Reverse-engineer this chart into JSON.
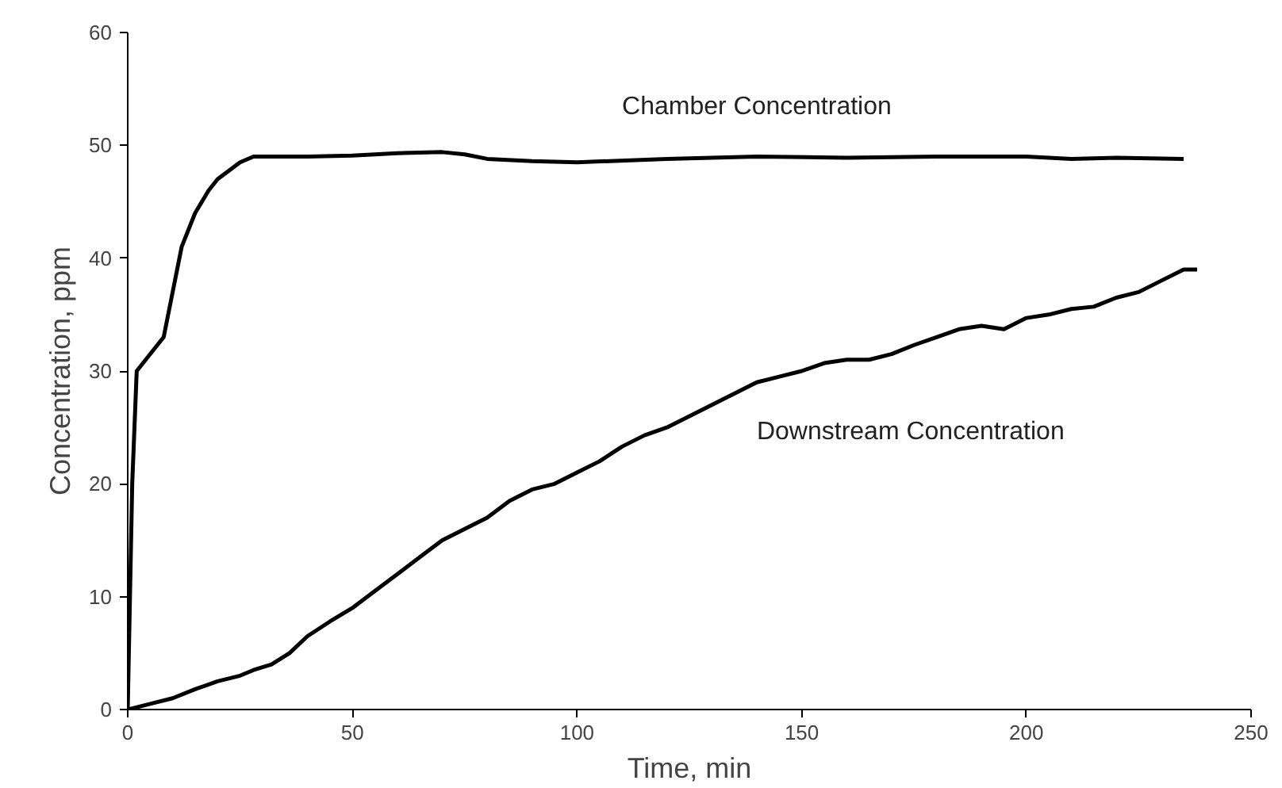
{
  "chart_data": {
    "type": "line",
    "xlabel": "Time, min",
    "ylabel": "Concentration, ppm",
    "xlim": [
      0,
      250
    ],
    "xticks": [
      0,
      50,
      100,
      150,
      200,
      250
    ],
    "ylim": [
      0,
      60
    ],
    "yticks": [
      0,
      10,
      20,
      30,
      40,
      50,
      60
    ],
    "grid": false,
    "marker": "none",
    "line_style": "solid",
    "series": [
      {
        "color": "#000000",
        "x": [
          0,
          1,
          2,
          4,
          6,
          8,
          10,
          12,
          15,
          18,
          20,
          25,
          28,
          30,
          40,
          50,
          60,
          70,
          75,
          80,
          90,
          100,
          120,
          140,
          160,
          180,
          200,
          210,
          220,
          235
        ],
        "values": [
          0,
          20,
          30,
          31,
          32,
          33,
          37,
          41,
          44,
          46,
          47,
          48.5,
          49,
          49,
          49,
          49.1,
          49.3,
          49.4,
          49.2,
          48.8,
          48.6,
          48.5,
          48.8,
          49,
          48.9,
          49,
          49,
          48.8,
          48.9,
          48.8
        ]
      },
      {
        "color": "#000000",
        "x": [
          0,
          5,
          10,
          15,
          20,
          25,
          28,
          32,
          36,
          40,
          45,
          50,
          55,
          60,
          65,
          70,
          75,
          80,
          85,
          90,
          95,
          100,
          105,
          110,
          115,
          120,
          125,
          130,
          135,
          140,
          145,
          150,
          155,
          160,
          165,
          170,
          175,
          180,
          185,
          190,
          195,
          200,
          205,
          210,
          215,
          220,
          225,
          230,
          235,
          238
        ],
        "values": [
          0,
          0.5,
          1,
          1.8,
          2.5,
          3,
          3.5,
          4,
          5,
          6.5,
          7.8,
          9,
          10.5,
          12,
          13.5,
          15,
          16,
          17,
          18.5,
          19.5,
          20,
          21,
          22,
          23.3,
          24.3,
          25,
          26,
          27,
          28,
          29,
          29.5,
          30,
          30.7,
          31,
          31,
          31.5,
          32.3,
          33,
          33.7,
          34,
          33.7,
          34.7,
          35,
          35.5,
          35.7,
          36.5,
          37,
          38,
          39,
          39
        ]
      }
    ],
    "annotations": [
      "Chamber Concentration",
      "Downstream Concentration"
    ]
  }
}
